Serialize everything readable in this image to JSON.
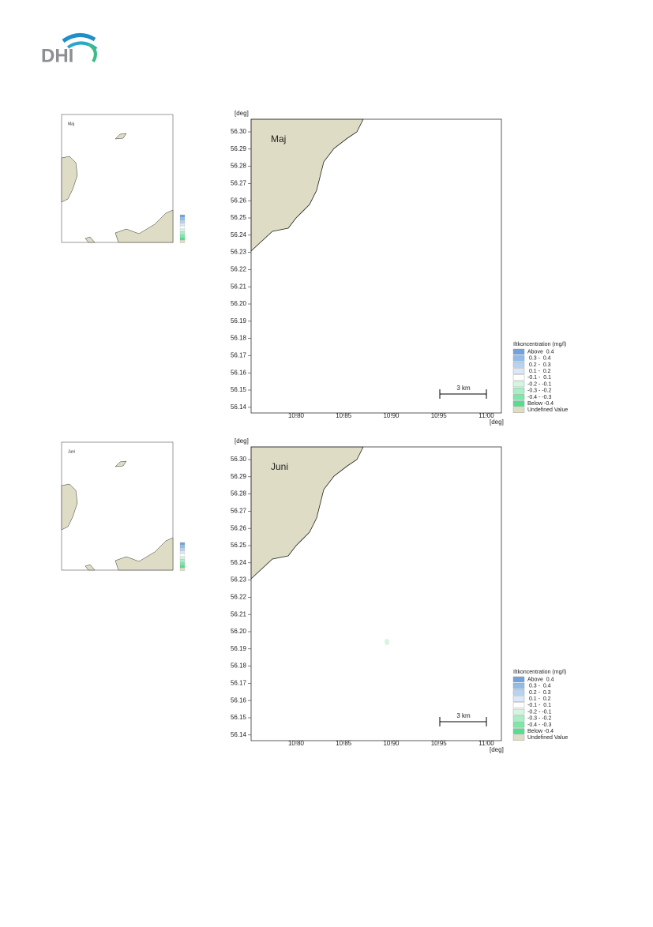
{
  "header": {
    "logo": "DHI"
  },
  "axes": {
    "unit_x": "[deg]",
    "unit_y": "[deg]",
    "yticks": [
      "56.30",
      "56.29",
      "56.28",
      "56.27",
      "56.26",
      "56.25",
      "56.24",
      "56.23",
      "56.22",
      "56.21",
      "56.20",
      "56.19",
      "56.18",
      "56.17",
      "56.16",
      "56.15",
      "56.14"
    ],
    "xticks": [
      "10.80",
      "10.85",
      "10.90",
      "10.95",
      "11.00"
    ]
  },
  "scale_bar": "3 km",
  "legend": {
    "title": "Iltkoncentration (mg/l)",
    "entries": [
      {
        "label": "Above  0.4",
        "color": "#6fa3dc"
      },
      {
        "label": " 0.3 -  0.4",
        "color": "#92bce6"
      },
      {
        "label": " 0.2 -  0.3",
        "color": "#b7d3ef"
      },
      {
        "label": " 0.1 -  0.2",
        "color": "#dbe8f7"
      },
      {
        "label": "-0.1 -  0.1",
        "color": "#ffffff"
      },
      {
        "label": "-0.2 - -0.1",
        "color": "#d4f5e2"
      },
      {
        "label": "-0.3 - -0.2",
        "color": "#aaeec6"
      },
      {
        "label": "-0.4 - -0.3",
        "color": "#7fe6a9"
      },
      {
        "label": "Below -0.4",
        "color": "#55de8c"
      },
      {
        "label": "Undefined Value",
        "color": "#dedcc4"
      }
    ]
  },
  "panels": [
    {
      "label": "Maj"
    },
    {
      "label": "Juni"
    }
  ]
}
